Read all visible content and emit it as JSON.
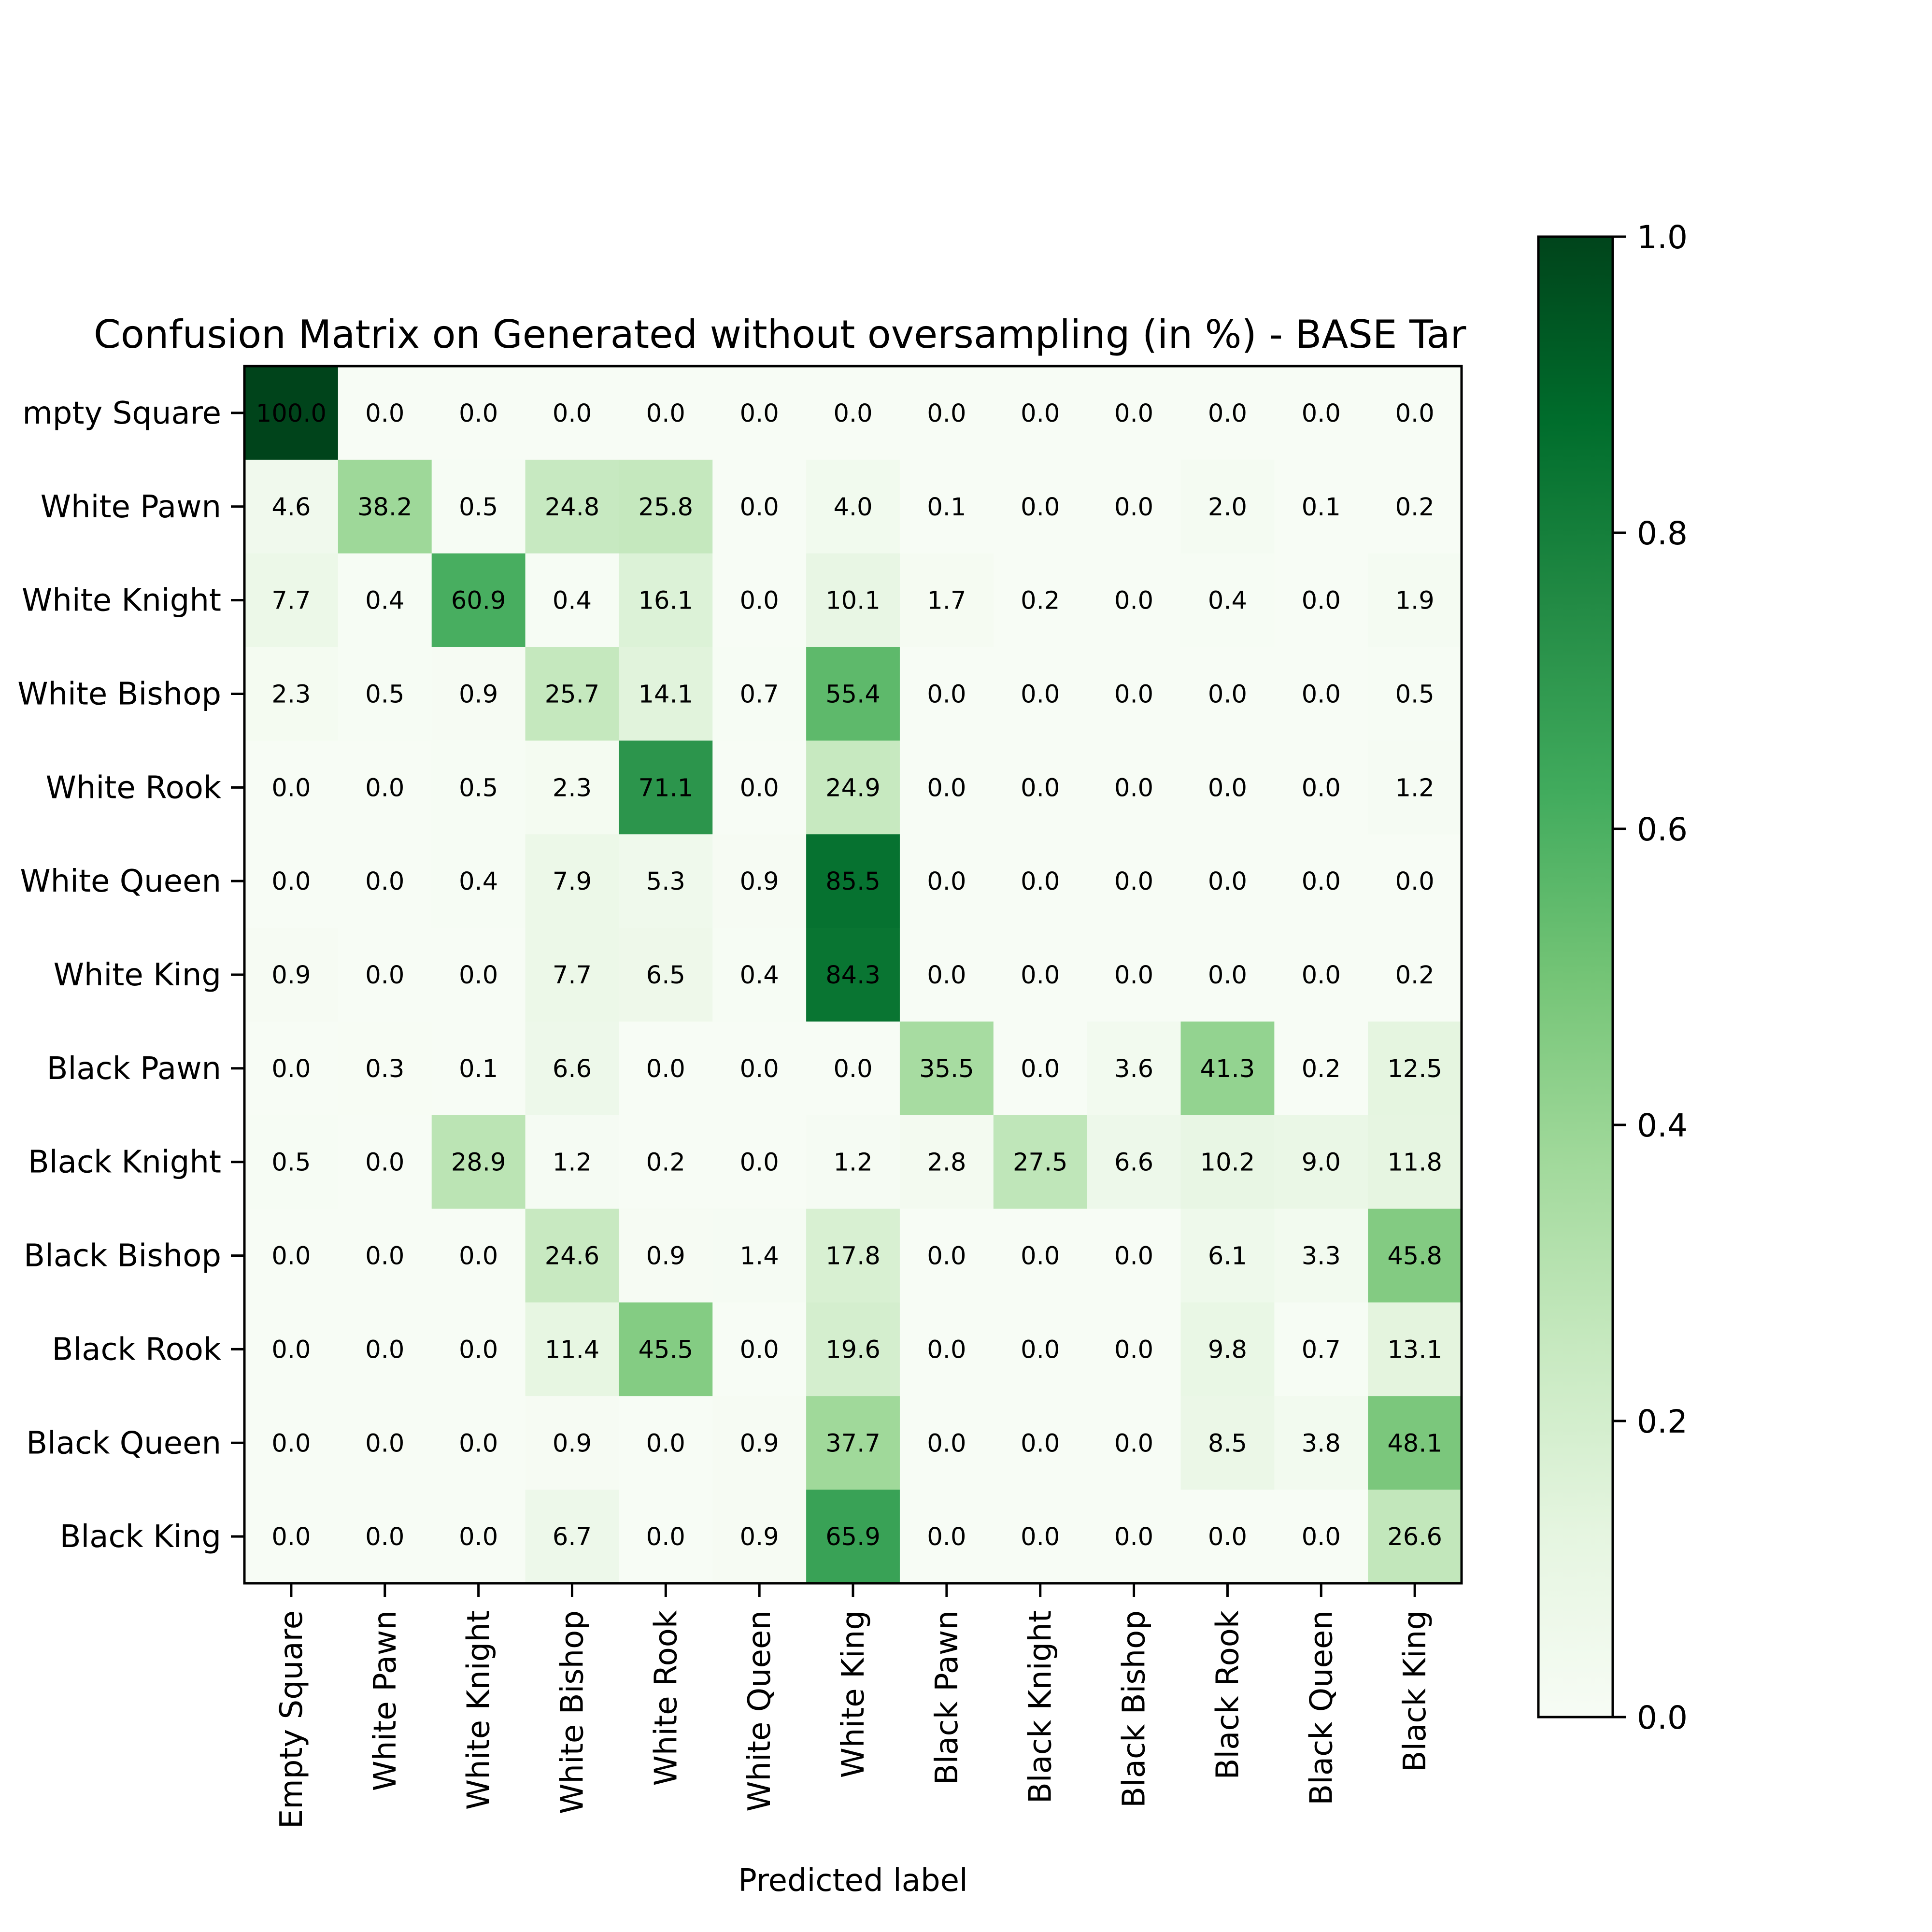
{
  "chart_data": {
    "type": "heatmap",
    "title": "Confusion Matrix on Generated without oversampling (in %) - BASE Tar",
    "xlabel": "Predicted label",
    "ylabel": "",
    "x_categories": [
      "Empty Square",
      "White Pawn",
      "White Knight",
      "White Bishop",
      "White Rook",
      "White Queen",
      "White King",
      "Black Pawn",
      "Black Knight",
      "Black Bishop",
      "Black Rook",
      "Black Queen",
      "Black King"
    ],
    "y_categories": [
      "Empty Square",
      "White Pawn",
      "White Knight",
      "White Bishop",
      "White Rook",
      "White Queen",
      "White King",
      "Black Pawn",
      "Black Knight",
      "Black Bishop",
      "Black Rook",
      "Black Queen",
      "Black King"
    ],
    "y_tick_labels": [
      "mpty Square",
      "White Pawn",
      "White Knight",
      "White Bishop",
      "White Rook",
      "White Queen",
      "White King",
      "Black Pawn",
      "Black Knight",
      "Black Bishop",
      "Black Rook",
      "Black Queen",
      "Black King"
    ],
    "values": [
      [
        100.0,
        0.0,
        0.0,
        0.0,
        0.0,
        0.0,
        0.0,
        0.0,
        0.0,
        0.0,
        0.0,
        0.0,
        0.0
      ],
      [
        4.6,
        38.2,
        0.5,
        24.8,
        25.8,
        0.0,
        4.0,
        0.1,
        0.0,
        0.0,
        2.0,
        0.1,
        0.2
      ],
      [
        7.7,
        0.4,
        60.9,
        0.4,
        16.1,
        0.0,
        10.1,
        1.7,
        0.2,
        0.0,
        0.4,
        0.0,
        1.9
      ],
      [
        2.3,
        0.5,
        0.9,
        25.7,
        14.1,
        0.7,
        55.4,
        0.0,
        0.0,
        0.0,
        0.0,
        0.0,
        0.5
      ],
      [
        0.0,
        0.0,
        0.5,
        2.3,
        71.1,
        0.0,
        24.9,
        0.0,
        0.0,
        0.0,
        0.0,
        0.0,
        1.2
      ],
      [
        0.0,
        0.0,
        0.4,
        7.9,
        5.3,
        0.9,
        85.5,
        0.0,
        0.0,
        0.0,
        0.0,
        0.0,
        0.0
      ],
      [
        0.9,
        0.0,
        0.0,
        7.7,
        6.5,
        0.4,
        84.3,
        0.0,
        0.0,
        0.0,
        0.0,
        0.0,
        0.2
      ],
      [
        0.0,
        0.3,
        0.1,
        6.6,
        0.0,
        0.0,
        0.0,
        35.5,
        0.0,
        3.6,
        41.3,
        0.2,
        12.5
      ],
      [
        0.5,
        0.0,
        28.9,
        1.2,
        0.2,
        0.0,
        1.2,
        2.8,
        27.5,
        6.6,
        10.2,
        9.0,
        11.8
      ],
      [
        0.0,
        0.0,
        0.0,
        24.6,
        0.9,
        1.4,
        17.8,
        0.0,
        0.0,
        0.0,
        6.1,
        3.3,
        45.8
      ],
      [
        0.0,
        0.0,
        0.0,
        11.4,
        45.5,
        0.0,
        19.6,
        0.0,
        0.0,
        0.0,
        9.8,
        0.7,
        13.1
      ],
      [
        0.0,
        0.0,
        0.0,
        0.9,
        0.0,
        0.9,
        37.7,
        0.0,
        0.0,
        0.0,
        8.5,
        3.8,
        48.1
      ],
      [
        0.0,
        0.0,
        0.0,
        6.7,
        0.0,
        0.9,
        65.9,
        0.0,
        0.0,
        0.0,
        0.0,
        0.0,
        26.6
      ]
    ],
    "value_format": "0.0",
    "colormap": "Greens",
    "colorbar": {
      "range": [
        0.0,
        1.0
      ],
      "ticks": [
        0.0,
        0.2,
        0.4,
        0.6,
        0.8,
        1.0
      ],
      "tick_labels": [
        "0.0",
        "0.2",
        "0.4",
        "0.6",
        "0.8",
        "1.0"
      ]
    },
    "grid": false,
    "colors": {
      "greens_stops": [
        "#f7fcf5",
        "#e5f5e0",
        "#c7e9c0",
        "#a1d99b",
        "#74c476",
        "#41ab5d",
        "#238b45",
        "#006d2c",
        "#00441b"
      ],
      "text": "#000000",
      "axis": "#000000",
      "background": "#ffffff"
    }
  }
}
